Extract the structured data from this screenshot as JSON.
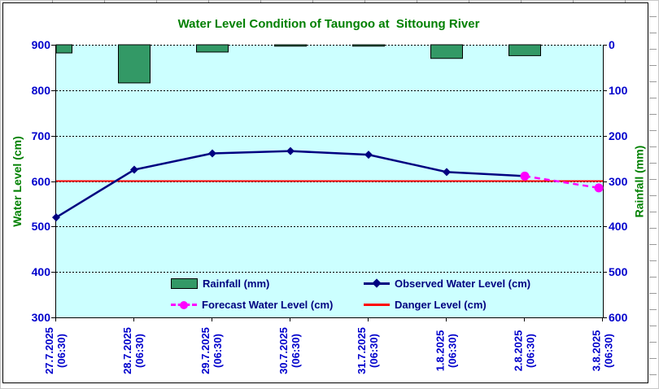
{
  "chart_data": {
    "type": "bar+line combo",
    "title": "Water Level Condition of Taungoo at  Sittoung River",
    "categories": [
      "27.7.2025",
      "28.7.2025",
      "29.7.2025",
      "30.7.2025",
      "31.7.2025",
      "1.8.2025",
      "2.8.2025",
      "3.8.2025"
    ],
    "category_time_suffix": "(06:30)",
    "left_axis": {
      "label": "Water Level (cm)",
      "min": 300,
      "max": 900,
      "ticks": [
        900,
        800,
        700,
        600,
        500,
        400,
        300
      ]
    },
    "right_axis": {
      "label": "Rainfall (mm)",
      "min": 0,
      "max": 600,
      "inverted": true,
      "ticks": [
        0,
        100,
        200,
        300,
        400,
        500,
        600
      ]
    },
    "series": [
      {
        "name": "Rainfall (mm)",
        "type": "bar",
        "axis": "right",
        "color": "#339966",
        "border_color": "#000000",
        "values": [
          18,
          84,
          16,
          3,
          3,
          30,
          24,
          null
        ]
      },
      {
        "name": "Observed Water Level (cm)",
        "type": "line",
        "axis": "left",
        "color": "#000080",
        "marker": "diamond",
        "values": [
          520,
          625,
          661,
          666,
          658,
          620,
          611,
          null
        ]
      },
      {
        "name": "Forecast Water Level (cm)",
        "type": "line",
        "axis": "left",
        "color": "#FF00FF",
        "marker": "circle",
        "line_style": "dashed",
        "values": [
          null,
          null,
          null,
          null,
          null,
          null,
          611,
          585
        ]
      },
      {
        "name": "Danger Level (cm)",
        "type": "hline",
        "axis": "left",
        "color": "#FF0000",
        "value": 600
      }
    ],
    "legend_position": "inside-bottom",
    "grid": "dotted-horizontal",
    "plot_bg": "#CCFFFF"
  },
  "styles": {
    "title_color": "#008000",
    "axis_title_color": "#008000",
    "tick_label_color": "#0000CC",
    "x_label_color": "#0000CC",
    "legend_text_color": "#000080",
    "gridline_color": "#000000",
    "frame_border_color": "#000000"
  }
}
